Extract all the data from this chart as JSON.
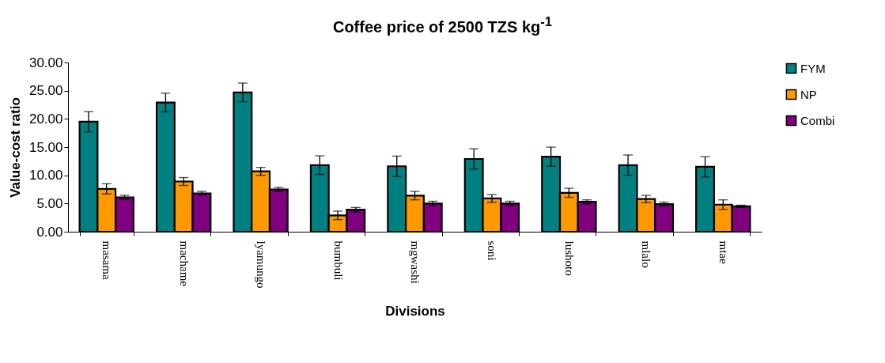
{
  "chart_data": {
    "type": "bar",
    "title": "Coffee price of 2500 TZS kg$^{-1}$",
    "xlabel": "Divisions",
    "ylabel": "Value-cost ratio",
    "categories": [
      "masama",
      "machame",
      "lyamungo",
      "bumbuli",
      "mgwashi",
      "soni",
      "lushoto",
      "mlalo",
      "mtae"
    ],
    "series": [
      {
        "name": "FYM",
        "color": "#008080",
        "values": [
          19.5,
          22.9,
          24.7,
          11.8,
          11.6,
          12.9,
          13.3,
          11.8,
          11.5
        ],
        "errors": [
          1.8,
          1.65,
          1.65,
          1.65,
          1.8,
          1.8,
          1.7,
          1.8,
          1.8
        ]
      },
      {
        "name": "NP",
        "color": "#ff9900",
        "values": [
          7.6,
          8.9,
          10.7,
          2.9,
          6.4,
          5.9,
          6.9,
          5.8,
          4.8
        ],
        "errors": [
          0.9,
          0.7,
          0.7,
          0.75,
          0.75,
          0.7,
          0.8,
          0.65,
          0.85
        ]
      },
      {
        "name": "Combi",
        "color": "#800080",
        "values": [
          6.1,
          6.8,
          7.5,
          3.9,
          5.0,
          5.0,
          5.3,
          4.9,
          4.5
        ],
        "errors": [
          0.35,
          0.35,
          0.35,
          0.4,
          0.4,
          0.4,
          0.35,
          0.35,
          0.2
        ]
      }
    ],
    "ylim": [
      0,
      30
    ],
    "yticks": [
      {
        "value": 0,
        "label": "0.00"
      },
      {
        "value": 5,
        "label": "5.00"
      },
      {
        "value": 10,
        "label": "10.00"
      },
      {
        "value": 15,
        "label": "15.00"
      },
      {
        "value": 20,
        "label": "20.00"
      },
      {
        "value": 25,
        "label": "25.00"
      },
      {
        "value": 30,
        "label": "30.00"
      }
    ],
    "grid": false,
    "legend": "right"
  }
}
